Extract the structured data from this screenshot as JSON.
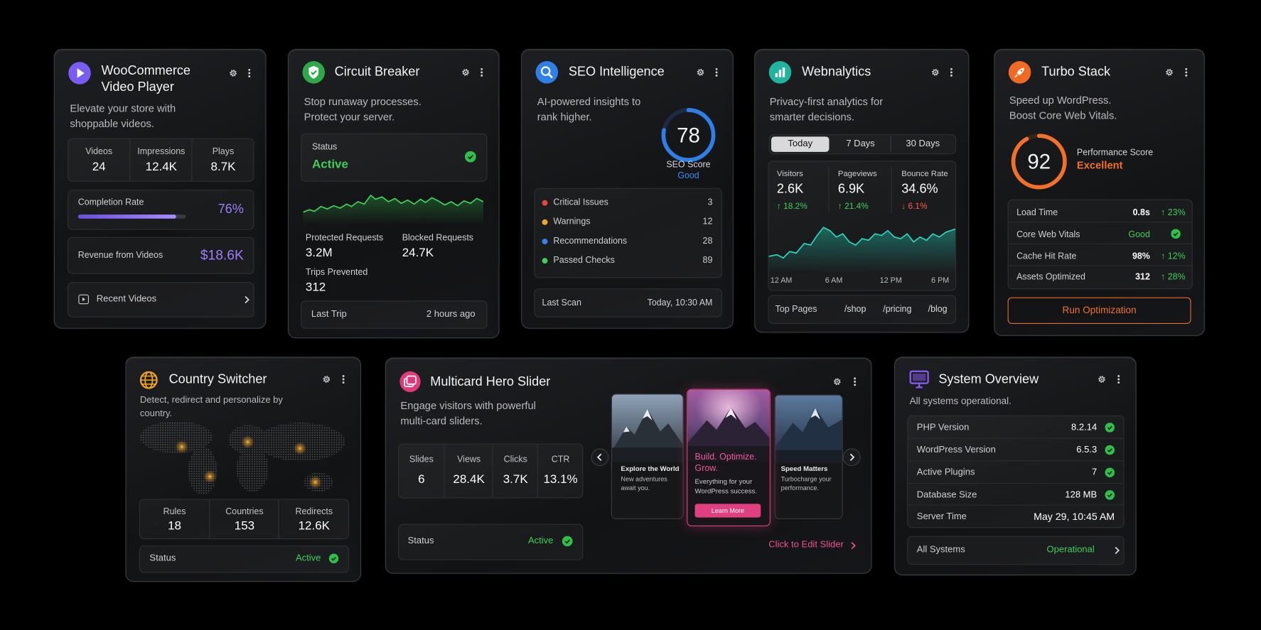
{
  "woo": {
    "title": "WooCommerce Video Player",
    "description": "Elevate your store with shoppable videos.",
    "stats": [
      {
        "label": "Videos",
        "value": 24
      },
      {
        "label": "Impressions",
        "value": "12.4K"
      },
      {
        "label": "Plays",
        "value": "8.7K"
      }
    ],
    "completion_label": "Completion Rate",
    "completion_value": "76%",
    "revenue_label": "Revenue from Videos",
    "revenue_value": "$18.6K",
    "link": "Recent Videos"
  },
  "circuit": {
    "title": "Circuit Breaker",
    "description": "Stop runaway processes. Protect your server.",
    "status_label": "Status",
    "status_value": "Active",
    "metrics": [
      {
        "label": "Protected Requests",
        "value": "3.2M"
      },
      {
        "label": "Blocked Requests",
        "value": "24.7K"
      },
      {
        "label": "Trips Prevented",
        "value": 312
      }
    ],
    "last_trip_label": "Last Trip",
    "last_trip_value": "2 hours ago"
  },
  "seo": {
    "title": "SEO Intelligence",
    "description": "AI-powered insights to rank higher.",
    "score": 78,
    "score_label": "SEO Score",
    "score_rating": "Good",
    "checks": [
      {
        "label": "Critical Issues",
        "value": 3
      },
      {
        "label": "Warnings",
        "value": 12
      },
      {
        "label": "Recommendations",
        "value": 28
      },
      {
        "label": "Passed Checks",
        "value": 89
      }
    ],
    "last_scan_label": "Last Scan",
    "last_scan_value": "Today, 10:30 AM"
  },
  "webnalytics": {
    "title": "Webnalytics",
    "description": "Privacy-first analytics for smarter decisions.",
    "tabs": [
      "Today",
      "7 Days",
      "30 Days"
    ],
    "metrics": [
      {
        "label": "Visitors",
        "value": "2.6K",
        "change": "↑ 18.2%"
      },
      {
        "label": "Pageviews",
        "value": "6.9K",
        "change": "↑ 21.4%"
      },
      {
        "label": "Bounce Rate",
        "value": "34.6%",
        "change": "↓ 6.1%"
      }
    ],
    "time_labels": [
      "12 AM",
      "6 AM",
      "12 PM",
      "6 PM"
    ],
    "top_pages_label": "Top Pages",
    "top_pages": [
      "/shop",
      "/pricing",
      "/blog"
    ]
  },
  "turbo": {
    "title": "Turbo Stack",
    "description": "Speed up WordPress. Boost Core Web Vitals.",
    "score": 92,
    "score_label": "Performance Score",
    "score_rating": "Excellent",
    "rows": [
      {
        "label": "Load Time",
        "value": "0.8s",
        "change": "↑ 23%"
      },
      {
        "label": "Core Web Vitals",
        "value": "Good"
      },
      {
        "label": "Cache Hit Rate",
        "value": "98%",
        "change": "↑ 12%"
      },
      {
        "label": "Assets Optimized",
        "value": 312,
        "change": "↑ 28%"
      }
    ],
    "button": "Run Optimization"
  },
  "country": {
    "title": "Country Switcher",
    "description": "Detect, redirect and personalize by country.",
    "stats": [
      {
        "label": "Rules",
        "value": 18
      },
      {
        "label": "Countries",
        "value": 153
      },
      {
        "label": "Redirects",
        "value": "12.6K"
      }
    ],
    "status_label": "Status",
    "status_value": "Active"
  },
  "slider": {
    "title": "Multicard Hero Slider",
    "description": "Engage visitors with powerful multi-card sliders.",
    "stats": [
      {
        "label": "Slides",
        "value": 6
      },
      {
        "label": "Views",
        "value": "28.4K"
      },
      {
        "label": "Clicks",
        "value": "3.7K"
      },
      {
        "label": "CTR",
        "value": "13.1%"
      }
    ],
    "status_label": "Status",
    "status_value": "Active",
    "slides": [
      {
        "title": "Explore the World",
        "text": "New adventures await you."
      },
      {
        "title": "Build. Optimize. Grow.",
        "text": "Everything for your WordPress success.",
        "button": "Learn More"
      },
      {
        "title": "Speed Matters",
        "text": "Turbocharge your performance."
      }
    ],
    "edit_link": "Click to Edit Slider"
  },
  "system": {
    "title": "System Overview",
    "description": "All systems operational.",
    "rows": [
      {
        "label": "PHP Version",
        "value": "8.2.14"
      },
      {
        "label": "WordPress Version",
        "value": "6.5.3"
      },
      {
        "label": "Active Plugins",
        "value": 7
      },
      {
        "label": "Database Size",
        "value": "128 MB"
      },
      {
        "label": "Server Time",
        "value": "May 29, 10:45 AM"
      }
    ],
    "all_label": "All Systems",
    "all_value": "Operational"
  }
}
